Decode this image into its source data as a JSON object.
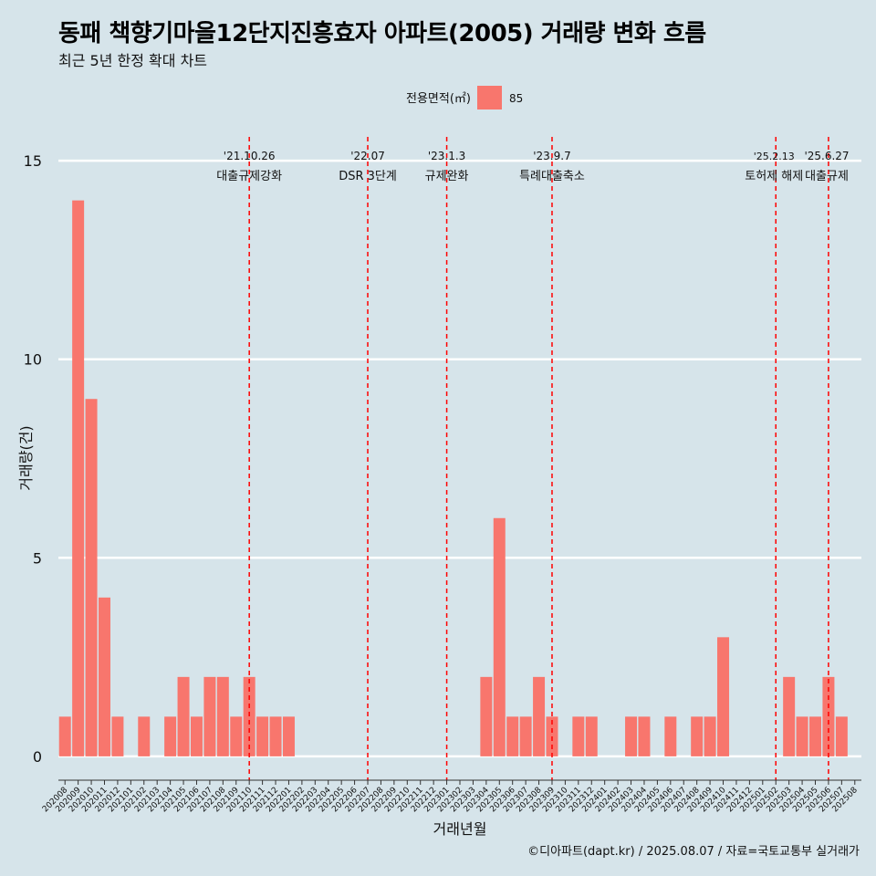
{
  "chart_data": {
    "type": "bar",
    "title": "동패 책향기마을12단지진흥효자 아파트(2005) 거래량 변화 흐름",
    "subtitle": "최근 5년 한정 확대 차트",
    "xlabel": "거래년월",
    "ylabel": "거래량(건)",
    "caption": "©디아파트(dapt.kr) / 2025.08.07 / 자료=국토교통부 실거래가",
    "legend": {
      "title": "전용면적(㎡)",
      "placement": "top",
      "entries": [
        {
          "label": "85",
          "color": "#f8766d"
        }
      ]
    },
    "ylim": [
      -0.6,
      15.6
    ],
    "yticks": [
      0,
      5,
      10,
      15
    ],
    "grid": true,
    "series": [
      {
        "name": "85",
        "color": "#f8766d"
      }
    ],
    "categories": [
      "202008",
      "202009",
      "202010",
      "202011",
      "202012",
      "202101",
      "202102",
      "202103",
      "202104",
      "202105",
      "202106",
      "202107",
      "202108",
      "202109",
      "202110",
      "202111",
      "202112",
      "202201",
      "202202",
      "202203",
      "202204",
      "202205",
      "202206",
      "202207",
      "202208",
      "202209",
      "202210",
      "202211",
      "202212",
      "202301",
      "202302",
      "202303",
      "202304",
      "202305",
      "202306",
      "202307",
      "202308",
      "202309",
      "202310",
      "202311",
      "202312",
      "202401",
      "202402",
      "202403",
      "202404",
      "202405",
      "202406",
      "202407",
      "202408",
      "202409",
      "202410",
      "202411",
      "202412",
      "202501",
      "202502",
      "202503",
      "202504",
      "202505",
      "202506",
      "202507",
      "202508"
    ],
    "values": [
      1,
      14,
      9,
      4,
      1,
      0,
      1,
      0,
      1,
      2,
      1,
      2,
      2,
      1,
      2,
      1,
      1,
      1,
      0,
      0,
      0,
      0,
      0,
      0,
      0,
      0,
      0,
      0,
      0,
      0,
      0,
      0,
      2,
      6,
      1,
      1,
      2,
      1,
      0,
      1,
      1,
      0,
      0,
      1,
      1,
      0,
      1,
      0,
      1,
      1,
      3,
      0,
      0,
      0,
      0,
      2,
      1,
      1,
      2,
      1,
      0
    ],
    "annotations": [
      {
        "x": "202110",
        "date": "'21.10.26",
        "label": "대출규제강화"
      },
      {
        "x": "202207",
        "date": "'22.07",
        "label": "DSR 3단계"
      },
      {
        "x": "202301",
        "date": "'23.1.3",
        "label": "규제완화"
      },
      {
        "x": "202309",
        "date": "'23.9.7",
        "label": "특례대출축소"
      },
      {
        "x": "202502",
        "date": "'25.2.13",
        "label": "토허제 해제"
      },
      {
        "x": "202506",
        "date": "'25.6.27",
        "label": "대출규제"
      }
    ],
    "annotation_color": "#ff0000"
  }
}
